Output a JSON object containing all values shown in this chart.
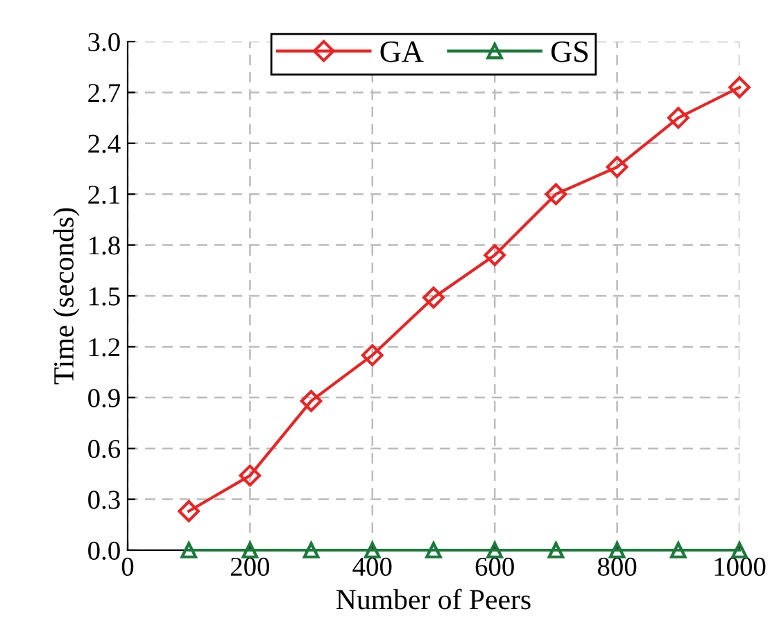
{
  "chart_data": {
    "type": "line",
    "xlabel": "Number of Peers",
    "ylabel": "Time (seconds)",
    "x": [
      100,
      200,
      300,
      400,
      500,
      600,
      700,
      800,
      900,
      1000
    ],
    "series": [
      {
        "name": "GA",
        "color": "#ee2222",
        "marker": "diamond",
        "values": [
          0.23,
          0.44,
          0.88,
          1.15,
          1.49,
          1.74,
          2.1,
          2.26,
          2.55,
          2.73
        ]
      },
      {
        "name": "GS",
        "color": "#1a7a3a",
        "marker": "triangle",
        "values": [
          0,
          0,
          0,
          0,
          0,
          0,
          0,
          0,
          0,
          0
        ]
      }
    ],
    "xlim": [
      0,
      1000
    ],
    "xticks": [
      0,
      200,
      400,
      600,
      800,
      1000
    ],
    "ylim": [
      0,
      3.0
    ],
    "yticks": [
      {
        "value": 0,
        "label": "0.0"
      },
      0.3,
      0.6,
      0.9,
      1.2,
      1.5,
      1.8,
      2.1,
      2.4,
      2.7,
      {
        "value": 3,
        "label": "3.0"
      }
    ],
    "grid": true,
    "legend": "top",
    "line_style": "solid"
  }
}
